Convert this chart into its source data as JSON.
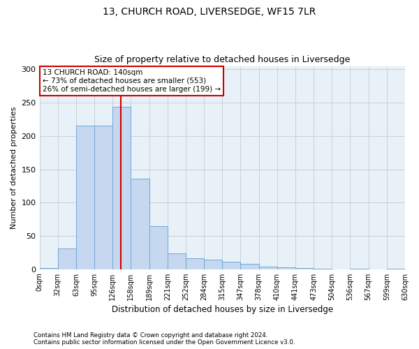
{
  "title": "13, CHURCH ROAD, LIVERSEDGE, WF15 7LR",
  "subtitle": "Size of property relative to detached houses in Liversedge",
  "xlabel": "Distribution of detached houses by size in Liversedge",
  "ylabel": "Number of detached properties",
  "footnote1": "Contains HM Land Registry data © Crown copyright and database right 2024.",
  "footnote2": "Contains public sector information licensed under the Open Government Licence v3.0.",
  "annotation_line1": "13 CHURCH ROAD: 140sqm",
  "annotation_line2": "← 73% of detached houses are smaller (553)",
  "annotation_line3": "26% of semi-detached houses are larger (199) →",
  "property_size": 140,
  "bin_edges": [
    0,
    31.5,
    63,
    94.5,
    126,
    157.5,
    189,
    220.5,
    252,
    283.5,
    315,
    346.5,
    378,
    409.5,
    441,
    472.5,
    504,
    535.5,
    567,
    598.5,
    630
  ],
  "bar_values": [
    2,
    31,
    215,
    216,
    244,
    136,
    65,
    24,
    16,
    14,
    11,
    8,
    4,
    3,
    2,
    1,
    0,
    1,
    0,
    1
  ],
  "bar_color": "#c5d8f0",
  "bar_edgecolor": "#6fa8d8",
  "vline_color": "#cc0000",
  "vline_x": 140,
  "annotation_box_edgecolor": "#cc0000",
  "background_color": "#ffffff",
  "plot_bg_color": "#e8f0f8",
  "grid_color": "#c8cfd8",
  "ylim": [
    0,
    305
  ],
  "yticks": [
    0,
    50,
    100,
    150,
    200,
    250,
    300
  ],
  "tick_labels": [
    "0sqm",
    "32sqm",
    "63sqm",
    "95sqm",
    "126sqm",
    "158sqm",
    "189sqm",
    "221sqm",
    "252sqm",
    "284sqm",
    "315sqm",
    "347sqm",
    "378sqm",
    "410sqm",
    "441sqm",
    "473sqm",
    "504sqm",
    "536sqm",
    "567sqm",
    "599sqm",
    "630sqm"
  ]
}
